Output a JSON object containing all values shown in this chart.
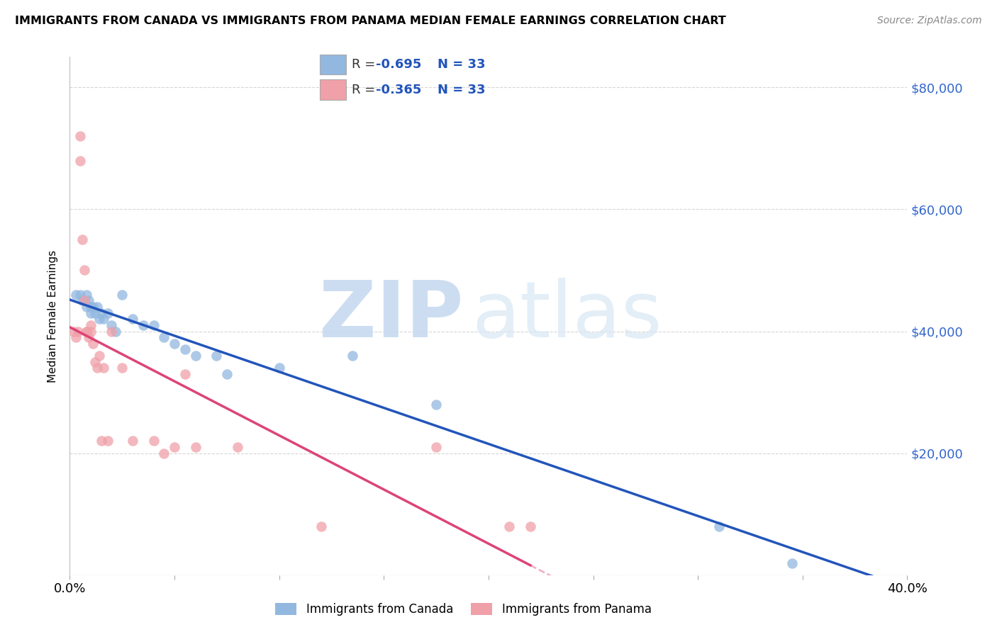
{
  "title": "IMMIGRANTS FROM CANADA VS IMMIGRANTS FROM PANAMA MEDIAN FEMALE EARNINGS CORRELATION CHART",
  "source": "Source: ZipAtlas.com",
  "ylabel": "Median Female Earnings",
  "xlim": [
    0.0,
    0.4
  ],
  "ylim": [
    0,
    85000
  ],
  "yticks": [
    0,
    20000,
    40000,
    60000,
    80000
  ],
  "ytick_labels": [
    "",
    "$20,000",
    "$40,000",
    "$60,000",
    "$80,000"
  ],
  "xticks": [
    0.0,
    0.05,
    0.1,
    0.15,
    0.2,
    0.25,
    0.3,
    0.35,
    0.4
  ],
  "canada_color": "#92b8e0",
  "panama_color": "#f0a0a8",
  "canada_line_color": "#2255bb",
  "panama_line_color": "#dd4477",
  "legend_text_color": "#2255bb",
  "canada_R": "-0.695",
  "canada_N": "33",
  "panama_R": "-0.365",
  "panama_N": "33",
  "canada_legend_label": "Immigrants from Canada",
  "panama_legend_label": "Immigrants from Panama",
  "canada_x": [
    0.003,
    0.005,
    0.006,
    0.007,
    0.008,
    0.008,
    0.009,
    0.01,
    0.01,
    0.011,
    0.012,
    0.013,
    0.014,
    0.015,
    0.016,
    0.018,
    0.02,
    0.022,
    0.025,
    0.03,
    0.035,
    0.04,
    0.045,
    0.05,
    0.055,
    0.06,
    0.07,
    0.075,
    0.1,
    0.135,
    0.175,
    0.31,
    0.345
  ],
  "canada_y": [
    46000,
    46000,
    45000,
    45000,
    46000,
    44000,
    45000,
    44000,
    43000,
    44000,
    43000,
    44000,
    42000,
    43000,
    42000,
    43000,
    41000,
    40000,
    46000,
    42000,
    41000,
    41000,
    39000,
    38000,
    37000,
    36000,
    36000,
    33000,
    34000,
    36000,
    28000,
    8000,
    2000
  ],
  "panama_x": [
    0.002,
    0.003,
    0.004,
    0.005,
    0.005,
    0.006,
    0.007,
    0.007,
    0.008,
    0.008,
    0.009,
    0.01,
    0.01,
    0.011,
    0.012,
    0.013,
    0.014,
    0.015,
    0.016,
    0.018,
    0.02,
    0.025,
    0.03,
    0.04,
    0.045,
    0.05,
    0.055,
    0.06,
    0.08,
    0.12,
    0.175,
    0.21,
    0.22
  ],
  "panama_y": [
    40000,
    39000,
    40000,
    72000,
    68000,
    55000,
    50000,
    45000,
    40000,
    40000,
    39000,
    41000,
    40000,
    38000,
    35000,
    34000,
    36000,
    22000,
    34000,
    22000,
    40000,
    34000,
    22000,
    22000,
    20000,
    21000,
    33000,
    21000,
    21000,
    8000,
    21000,
    8000,
    8000
  ]
}
